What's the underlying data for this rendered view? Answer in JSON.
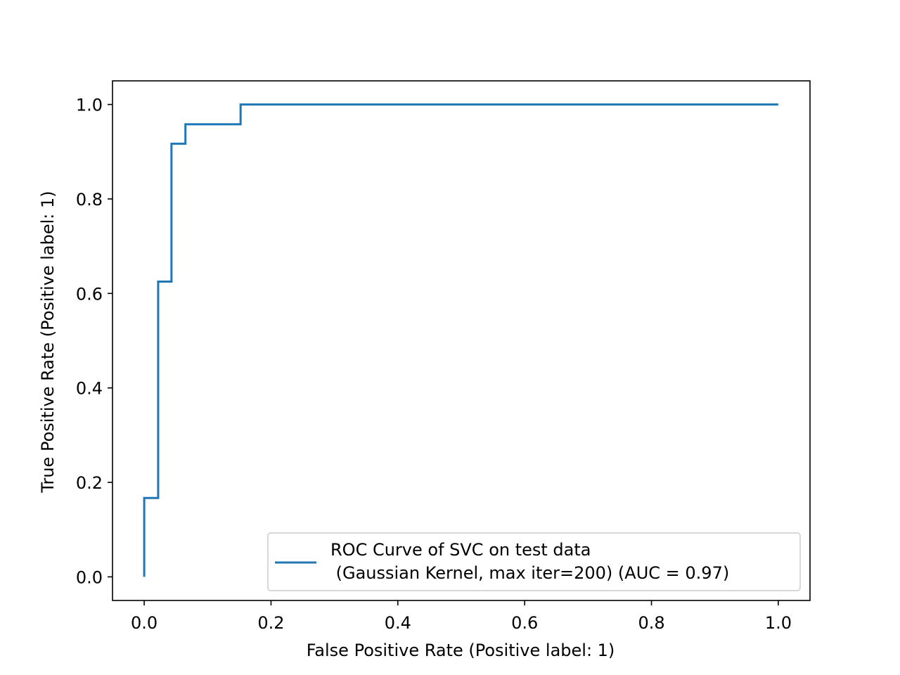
{
  "chart_data": {
    "type": "line",
    "title": "",
    "xlabel": "False Positive Rate (Positive label: 1)",
    "ylabel": "True Positive Rate (Positive label: 1)",
    "xlim": [
      -0.05,
      1.05
    ],
    "ylim": [
      -0.05,
      1.05
    ],
    "x_ticks": [
      0.0,
      0.2,
      0.4,
      0.6,
      0.8,
      1.0
    ],
    "x_tick_labels": [
      "0.0",
      "0.2",
      "0.4",
      "0.6",
      "0.8",
      "1.0"
    ],
    "y_ticks": [
      0.0,
      0.2,
      0.4,
      0.6,
      0.8,
      1.0
    ],
    "y_tick_labels": [
      "0.0",
      "0.2",
      "0.4",
      "0.6",
      "0.8",
      "1.0"
    ],
    "grid": false,
    "legend_position": "bottom-right",
    "series": [
      {
        "name": "ROC Curve of SVC on test data\n (Gaussian Kernel, max iter=200) (AUC = 0.97)",
        "color": "#1f77b4",
        "drawstyle": "steps",
        "x": [
          0.0,
          0.0,
          0.022,
          0.022,
          0.043,
          0.043,
          0.065,
          0.065,
          0.152,
          0.152,
          1.0
        ],
        "y": [
          0.0,
          0.167,
          0.167,
          0.625,
          0.625,
          0.917,
          0.917,
          0.958,
          0.958,
          1.0,
          1.0
        ]
      }
    ],
    "legend_lines": [
      "ROC Curve of SVC on test data",
      " (Gaussian Kernel, max iter=200) (AUC = 0.97)"
    ]
  }
}
